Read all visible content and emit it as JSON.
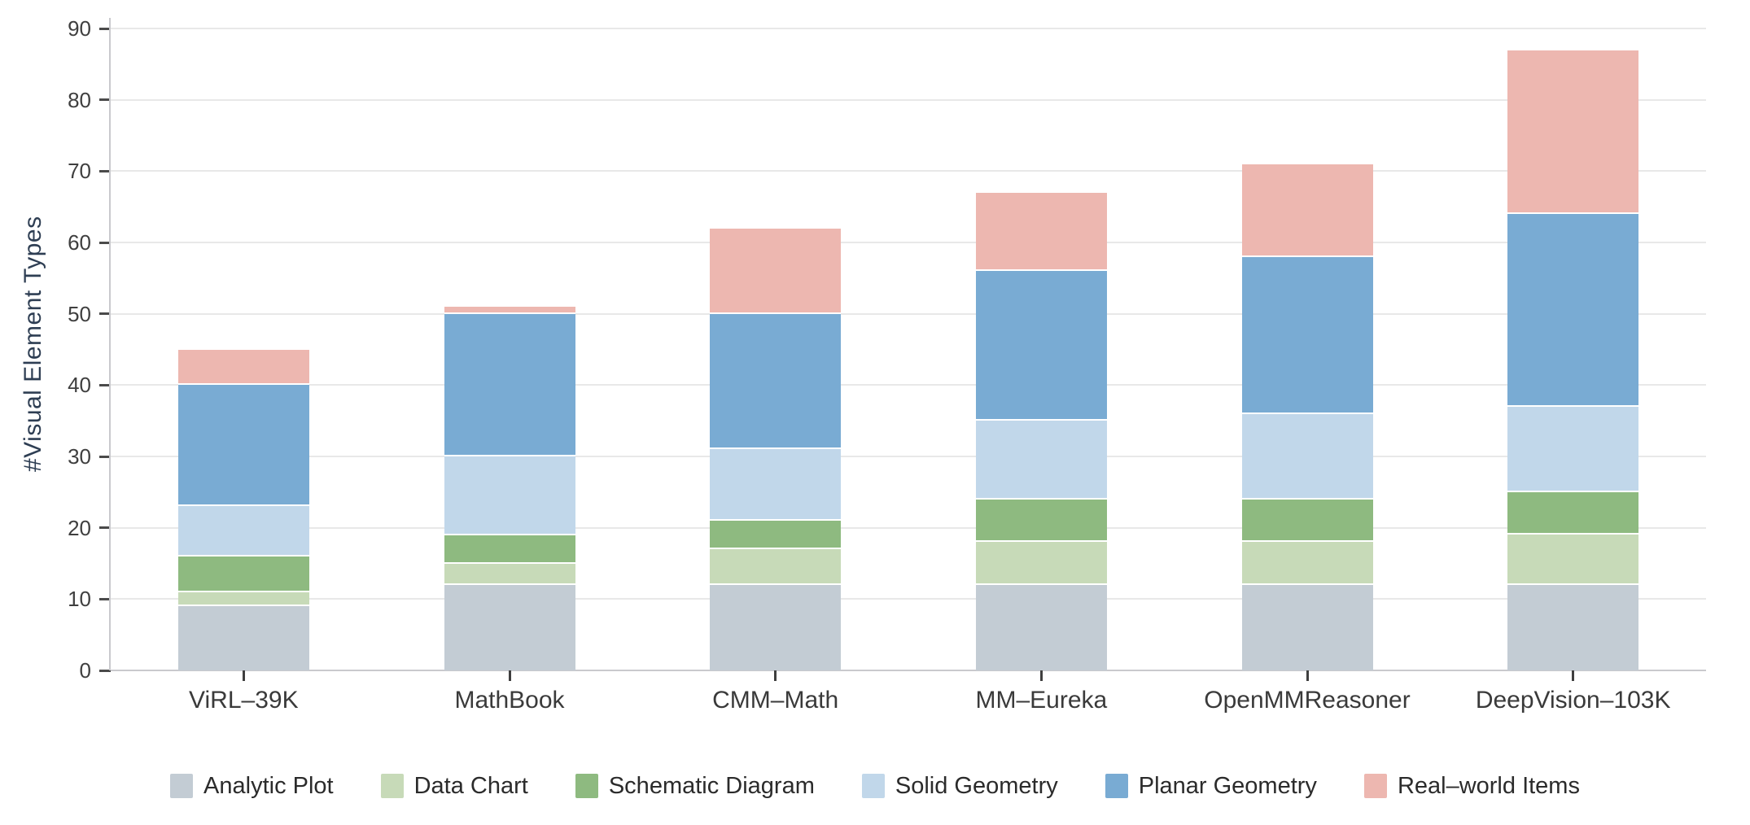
{
  "chart_data": {
    "type": "bar",
    "stacked": true,
    "title": "",
    "xlabel": "",
    "ylabel": "#Visual Element Types",
    "categories": [
      "ViRL–39K",
      "MathBook",
      "CMM–Math",
      "MM–Eureka",
      "OpenMMReasoner",
      "DeepVision–103K"
    ],
    "series": [
      {
        "name": "Analytic Plot",
        "color": "#c3ccd4",
        "values": [
          9,
          12,
          12,
          12,
          12,
          12
        ]
      },
      {
        "name": "Data Chart",
        "color": "#c7dab8",
        "values": [
          2,
          3,
          5,
          6,
          6,
          7
        ]
      },
      {
        "name": "Schematic Diagram",
        "color": "#8eba80",
        "values": [
          5,
          4,
          4,
          6,
          6,
          6
        ]
      },
      {
        "name": "Solid Geometry",
        "color": "#c1d7ea",
        "values": [
          7,
          11,
          10,
          11,
          12,
          12
        ]
      },
      {
        "name": "Planar Geometry",
        "color": "#79abd3",
        "values": [
          17,
          20,
          19,
          21,
          22,
          27
        ]
      },
      {
        "name": "Real–world Items",
        "color": "#edb7b0",
        "values": [
          5,
          1,
          12,
          11,
          13,
          23
        ]
      }
    ],
    "stack_totals": [
      45,
      51,
      62,
      67,
      71,
      87
    ],
    "yticks": [
      0,
      10,
      20,
      30,
      40,
      50,
      60,
      70,
      80,
      90
    ],
    "ylim": [
      0,
      91.5
    ],
    "grid": true,
    "legend_position": "bottom"
  },
  "colors": {
    "background": "#ffffff",
    "gridline": "#e8e8e8",
    "axis_line": "#c9c9cd",
    "tick_mark": "#4a4a4a",
    "y_tick_label": "#3f3f3f",
    "x_label": "#3a3a3a",
    "y_title": "#2e3e53",
    "legend_text": "#2b2b2b",
    "segment_divider": "#ffffff"
  }
}
